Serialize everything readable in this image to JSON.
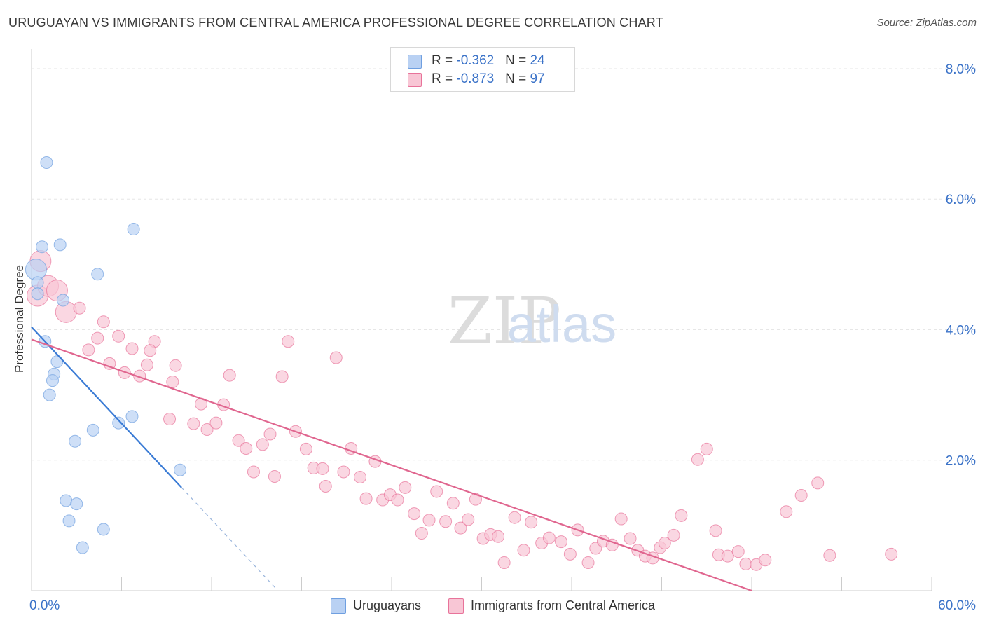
{
  "title": "URUGUAYAN VS IMMIGRANTS FROM CENTRAL AMERICA PROFESSIONAL DEGREE CORRELATION CHART",
  "source": "Source: ZipAtlas.com",
  "watermark": {
    "zip": "ZIP",
    "atlas": "atlas"
  },
  "legend": {
    "series1": {
      "r_label": "R = ",
      "r_value": "-0.362",
      "n_label": "N = ",
      "n_value": "24"
    },
    "series2": {
      "r_label": "R = ",
      "r_value": "-0.873",
      "n_label": "N = ",
      "n_value": "97"
    }
  },
  "chart_data": {
    "type": "scatter",
    "title": "URUGUAYAN VS IMMIGRANTS FROM CENTRAL AMERICA PROFESSIONAL DEGREE CORRELATION CHART",
    "xlabel": "",
    "ylabel": "Professional Degree",
    "xlim": [
      0,
      60
    ],
    "ylim": [
      0,
      8.3
    ],
    "x_tick_labels": [
      "0.0%",
      "60.0%"
    ],
    "y_ticks": [
      2,
      4,
      6,
      8
    ],
    "y_tick_labels": [
      "2.0%",
      "4.0%",
      "6.0%",
      "8.0%"
    ],
    "grid": true,
    "legend_position": "top-center",
    "series": [
      {
        "name": "Uruguayans",
        "color": "#6f9fe0",
        "fill": "#b9d1f3",
        "r": -0.362,
        "n": 24,
        "trend": {
          "x0": 0.0,
          "y0": 4.04,
          "x1": 10.0,
          "y1": 1.58,
          "dash_to_x": 16.3
        },
        "points": [
          {
            "x": 1.0,
            "y": 6.56,
            "s": 1
          },
          {
            "x": 6.8,
            "y": 5.54,
            "s": 1
          },
          {
            "x": 0.7,
            "y": 5.27,
            "s": 1
          },
          {
            "x": 1.9,
            "y": 5.3,
            "s": 1
          },
          {
            "x": 0.3,
            "y": 4.92,
            "s": 2
          },
          {
            "x": 4.4,
            "y": 4.85,
            "s": 1
          },
          {
            "x": 0.4,
            "y": 4.72,
            "s": 1
          },
          {
            "x": 0.4,
            "y": 4.55,
            "s": 1
          },
          {
            "x": 2.1,
            "y": 4.45,
            "s": 1
          },
          {
            "x": 0.9,
            "y": 3.82,
            "s": 1
          },
          {
            "x": 1.7,
            "y": 3.51,
            "s": 1
          },
          {
            "x": 1.5,
            "y": 3.32,
            "s": 1
          },
          {
            "x": 1.4,
            "y": 3.22,
            "s": 1
          },
          {
            "x": 1.2,
            "y": 3.0,
            "s": 1
          },
          {
            "x": 6.7,
            "y": 2.67,
            "s": 1
          },
          {
            "x": 5.8,
            "y": 2.57,
            "s": 1
          },
          {
            "x": 4.1,
            "y": 2.46,
            "s": 1
          },
          {
            "x": 2.9,
            "y": 2.29,
            "s": 1
          },
          {
            "x": 9.9,
            "y": 1.85,
            "s": 1
          },
          {
            "x": 2.3,
            "y": 1.38,
            "s": 1
          },
          {
            "x": 3.0,
            "y": 1.33,
            "s": 1
          },
          {
            "x": 2.5,
            "y": 1.07,
            "s": 1
          },
          {
            "x": 4.8,
            "y": 0.94,
            "s": 1
          },
          {
            "x": 3.4,
            "y": 0.66,
            "s": 1
          }
        ]
      },
      {
        "name": "Immigrants from Central America",
        "color": "#e8739a",
        "fill": "#f8c6d5",
        "r": -0.873,
        "n": 97,
        "trend": {
          "x0": 0.0,
          "y0": 3.85,
          "x1": 48.0,
          "y1": 0.0
        },
        "points": [
          {
            "x": 0.4,
            "y": 4.52,
            "s": 2
          },
          {
            "x": 0.6,
            "y": 5.05,
            "s": 2
          },
          {
            "x": 1.1,
            "y": 4.67,
            "s": 2
          },
          {
            "x": 1.7,
            "y": 4.6,
            "s": 2
          },
          {
            "x": 2.3,
            "y": 4.27,
            "s": 2
          },
          {
            "x": 3.2,
            "y": 4.33,
            "s": 1
          },
          {
            "x": 4.8,
            "y": 4.12,
            "s": 1
          },
          {
            "x": 3.8,
            "y": 3.69,
            "s": 1
          },
          {
            "x": 4.4,
            "y": 3.87,
            "s": 1
          },
          {
            "x": 5.8,
            "y": 3.9,
            "s": 1
          },
          {
            "x": 6.7,
            "y": 3.71,
            "s": 1
          },
          {
            "x": 8.2,
            "y": 3.82,
            "s": 1
          },
          {
            "x": 7.9,
            "y": 3.68,
            "s": 1
          },
          {
            "x": 5.2,
            "y": 3.48,
            "s": 1
          },
          {
            "x": 7.7,
            "y": 3.46,
            "s": 1
          },
          {
            "x": 6.2,
            "y": 3.34,
            "s": 1
          },
          {
            "x": 7.2,
            "y": 3.29,
            "s": 1
          },
          {
            "x": 9.6,
            "y": 3.45,
            "s": 1
          },
          {
            "x": 9.4,
            "y": 3.2,
            "s": 1
          },
          {
            "x": 13.2,
            "y": 3.3,
            "s": 1
          },
          {
            "x": 16.7,
            "y": 3.28,
            "s": 1
          },
          {
            "x": 17.1,
            "y": 3.82,
            "s": 1
          },
          {
            "x": 20.3,
            "y": 3.57,
            "s": 1
          },
          {
            "x": 11.3,
            "y": 2.86,
            "s": 1
          },
          {
            "x": 12.8,
            "y": 2.85,
            "s": 1
          },
          {
            "x": 9.2,
            "y": 2.63,
            "s": 1
          },
          {
            "x": 10.8,
            "y": 2.56,
            "s": 1
          },
          {
            "x": 11.7,
            "y": 2.47,
            "s": 1
          },
          {
            "x": 12.3,
            "y": 2.57,
            "s": 1
          },
          {
            "x": 13.8,
            "y": 2.3,
            "s": 1
          },
          {
            "x": 14.3,
            "y": 2.18,
            "s": 1
          },
          {
            "x": 15.4,
            "y": 2.24,
            "s": 1
          },
          {
            "x": 15.9,
            "y": 2.4,
            "s": 1
          },
          {
            "x": 17.6,
            "y": 2.44,
            "s": 1
          },
          {
            "x": 18.3,
            "y": 2.17,
            "s": 1
          },
          {
            "x": 21.3,
            "y": 2.18,
            "s": 1
          },
          {
            "x": 14.8,
            "y": 1.82,
            "s": 1
          },
          {
            "x": 16.2,
            "y": 1.75,
            "s": 1
          },
          {
            "x": 18.8,
            "y": 1.88,
            "s": 1
          },
          {
            "x": 19.4,
            "y": 1.87,
            "s": 1
          },
          {
            "x": 20.8,
            "y": 1.82,
            "s": 1
          },
          {
            "x": 19.6,
            "y": 1.6,
            "s": 1
          },
          {
            "x": 21.9,
            "y": 1.74,
            "s": 1
          },
          {
            "x": 22.9,
            "y": 1.98,
            "s": 1
          },
          {
            "x": 22.3,
            "y": 1.41,
            "s": 1
          },
          {
            "x": 23.4,
            "y": 1.39,
            "s": 1
          },
          {
            "x": 23.9,
            "y": 1.47,
            "s": 1
          },
          {
            "x": 24.4,
            "y": 1.39,
            "s": 1
          },
          {
            "x": 24.9,
            "y": 1.58,
            "s": 1
          },
          {
            "x": 25.5,
            "y": 1.18,
            "s": 1
          },
          {
            "x": 26.0,
            "y": 0.88,
            "s": 1
          },
          {
            "x": 26.5,
            "y": 1.08,
            "s": 1
          },
          {
            "x": 27.0,
            "y": 1.52,
            "s": 1
          },
          {
            "x": 27.6,
            "y": 1.06,
            "s": 1
          },
          {
            "x": 28.1,
            "y": 1.34,
            "s": 1
          },
          {
            "x": 28.6,
            "y": 0.96,
            "s": 1
          },
          {
            "x": 29.1,
            "y": 1.09,
            "s": 1
          },
          {
            "x": 29.6,
            "y": 1.4,
            "s": 1
          },
          {
            "x": 30.1,
            "y": 0.8,
            "s": 1
          },
          {
            "x": 30.6,
            "y": 0.86,
            "s": 1
          },
          {
            "x": 31.1,
            "y": 0.83,
            "s": 1
          },
          {
            "x": 31.5,
            "y": 0.43,
            "s": 1
          },
          {
            "x": 32.2,
            "y": 1.12,
            "s": 1
          },
          {
            "x": 32.8,
            "y": 0.62,
            "s": 1
          },
          {
            "x": 33.3,
            "y": 1.05,
            "s": 1
          },
          {
            "x": 34.0,
            "y": 0.73,
            "s": 1
          },
          {
            "x": 34.5,
            "y": 0.81,
            "s": 1
          },
          {
            "x": 35.3,
            "y": 0.75,
            "s": 1
          },
          {
            "x": 35.9,
            "y": 0.56,
            "s": 1
          },
          {
            "x": 36.4,
            "y": 0.93,
            "s": 1
          },
          {
            "x": 37.1,
            "y": 0.43,
            "s": 1
          },
          {
            "x": 37.6,
            "y": 0.65,
            "s": 1
          },
          {
            "x": 38.1,
            "y": 0.76,
            "s": 1
          },
          {
            "x": 38.7,
            "y": 0.7,
            "s": 1
          },
          {
            "x": 39.3,
            "y": 1.1,
            "s": 1
          },
          {
            "x": 39.9,
            "y": 0.8,
            "s": 1
          },
          {
            "x": 40.4,
            "y": 0.62,
            "s": 1
          },
          {
            "x": 40.9,
            "y": 0.53,
            "s": 1
          },
          {
            "x": 41.4,
            "y": 0.5,
            "s": 1
          },
          {
            "x": 41.9,
            "y": 0.66,
            "s": 1
          },
          {
            "x": 42.2,
            "y": 0.73,
            "s": 1
          },
          {
            "x": 42.8,
            "y": 0.85,
            "s": 1
          },
          {
            "x": 43.3,
            "y": 1.15,
            "s": 1
          },
          {
            "x": 44.4,
            "y": 2.01,
            "s": 1
          },
          {
            "x": 45.0,
            "y": 2.17,
            "s": 1
          },
          {
            "x": 45.6,
            "y": 0.92,
            "s": 1
          },
          {
            "x": 45.8,
            "y": 0.55,
            "s": 1
          },
          {
            "x": 46.4,
            "y": 0.53,
            "s": 1
          },
          {
            "x": 47.1,
            "y": 0.6,
            "s": 1
          },
          {
            "x": 47.6,
            "y": 0.41,
            "s": 1
          },
          {
            "x": 48.3,
            "y": 0.4,
            "s": 1
          },
          {
            "x": 50.3,
            "y": 1.21,
            "s": 1
          },
          {
            "x": 51.3,
            "y": 1.46,
            "s": 1
          },
          {
            "x": 52.4,
            "y": 1.65,
            "s": 1
          },
          {
            "x": 53.2,
            "y": 0.54,
            "s": 1
          },
          {
            "x": 57.3,
            "y": 0.56,
            "s": 1
          },
          {
            "x": 48.9,
            "y": 0.47,
            "s": 1
          }
        ]
      }
    ]
  }
}
